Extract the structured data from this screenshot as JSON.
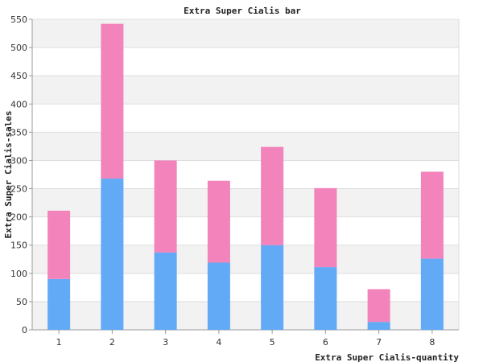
{
  "chart_data": {
    "type": "bar",
    "stacked": true,
    "title": "Extra Super Cialis bar",
    "xlabel": "Extra Super Cialis-quantity",
    "ylabel": "Extra Super Cialis-sales",
    "categories": [
      "1",
      "2",
      "3",
      "4",
      "5",
      "6",
      "7",
      "8"
    ],
    "series": [
      {
        "color": "#62a9f6",
        "values": [
          90,
          268,
          137,
          119,
          150,
          111,
          14,
          126
        ]
      },
      {
        "color": "#f283bb",
        "values": [
          121,
          274,
          163,
          145,
          174,
          140,
          58,
          154
        ]
      }
    ],
    "ylim": [
      0,
      550
    ],
    "yticks": [
      0,
      50,
      100,
      150,
      200,
      250,
      300,
      350,
      400,
      450,
      500,
      550
    ],
    "grid": true,
    "grid_band_color": "#f2f2f2",
    "grid_line_color": "#dddddd"
  }
}
